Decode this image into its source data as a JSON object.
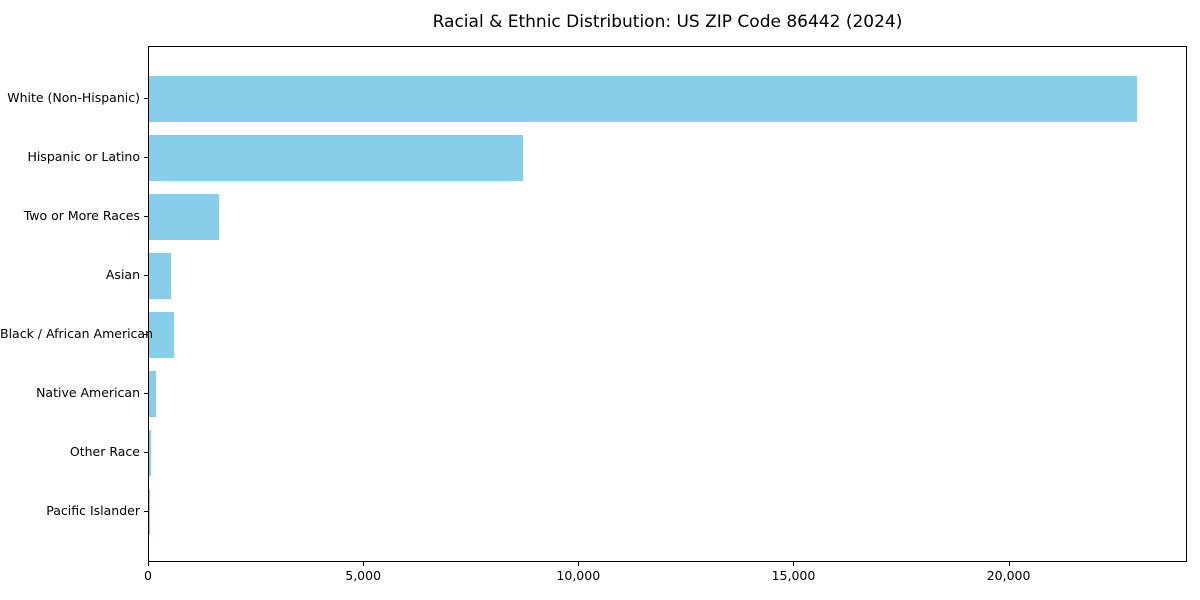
{
  "chart_data": {
    "type": "bar",
    "orientation": "horizontal",
    "title": "Racial & Ethnic Distribution: US ZIP Code 86442 (2024)",
    "xlabel": "",
    "ylabel": "",
    "categories": [
      "White (Non-Hispanic)",
      "Hispanic or Latino",
      "Two or More Races",
      "Asian",
      "Black / African American",
      "Native American",
      "Other Race",
      "Pacific Islander"
    ],
    "values": [
      22950,
      8700,
      1620,
      520,
      580,
      160,
      55,
      15
    ],
    "xlim": [
      0,
      24146
    ],
    "xticks": [
      {
        "value": 0,
        "label": "0"
      },
      {
        "value": 5000,
        "label": "5,000"
      },
      {
        "value": 10000,
        "label": "10,000"
      },
      {
        "value": 15000,
        "label": "15,000"
      },
      {
        "value": 20000,
        "label": "20,000"
      }
    ],
    "bar_color": "#87CEEB",
    "axis_color": "#000000",
    "background_color": "#FFFFFF",
    "grid": false,
    "legend": null
  }
}
